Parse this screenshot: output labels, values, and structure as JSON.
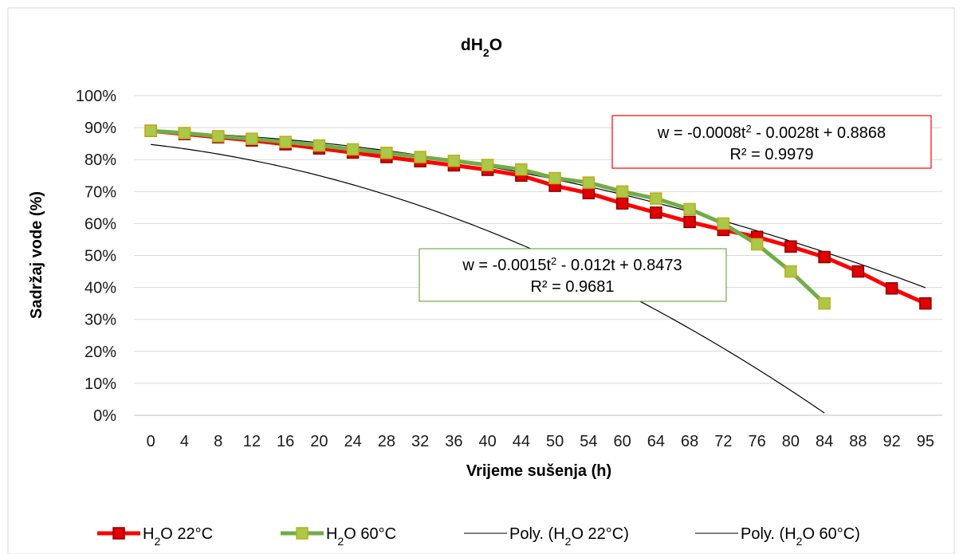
{
  "chart_data": {
    "type": "line",
    "title_main": "dH",
    "title_sub": "2",
    "title_tail": "O",
    "xlabel": "Vrijeme sušenja (h)",
    "ylabel": "Sadržaj vode (%)",
    "ylim": [
      0,
      100
    ],
    "y_ticks": [
      "0%",
      "10%",
      "20%",
      "30%",
      "40%",
      "50%",
      "60%",
      "70%",
      "80%",
      "90%",
      "100%"
    ],
    "categories": [
      "0",
      "4",
      "8",
      "12",
      "16",
      "20",
      "24",
      "28",
      "32",
      "36",
      "40",
      "44",
      "50",
      "54",
      "60",
      "64",
      "68",
      "72",
      "76",
      "80",
      "84",
      "88",
      "92",
      "95"
    ],
    "grid": "horizontal",
    "legend_position": "bottom",
    "series": [
      {
        "name": "H2O 22°C",
        "legend_pre": "H",
        "legend_sub": "2",
        "legend_post": "O 22°C",
        "color": "#ff0000",
        "marker_fill": "#e00000",
        "marker_stroke": "#8b0000",
        "values": [
          89,
          88,
          87,
          86,
          84.8,
          83.5,
          82.2,
          80.8,
          79.5,
          78.2,
          76.8,
          75,
          71.8,
          69.5,
          66.3,
          63.4,
          60.5,
          58,
          55.8,
          52.8,
          49.5,
          45,
          39.7,
          35
        ]
      },
      {
        "name": "H2O 60°C",
        "legend_pre": "H",
        "legend_sub": "2",
        "legend_post": "O 60°C",
        "color": "#70ad47",
        "marker_fill": "#a9c94a",
        "marker_stroke": "#c8a818",
        "values": [
          89,
          88.3,
          87.3,
          86.5,
          85.5,
          84.4,
          83.2,
          82.1,
          80.8,
          79.6,
          78.3,
          76.9,
          74.2,
          72.8,
          70,
          67.8,
          64.5,
          60,
          53.5,
          45,
          35,
          null,
          null,
          null
        ]
      }
    ],
    "trendlines": [
      {
        "name": "Poly. (H2O 22°C)",
        "legend_pre": "Poly. (H",
        "legend_sub": "2",
        "legend_post": "O 22°C)",
        "equation": "w = -0.0008t² - 0.0028t + 0.8868",
        "eq_part1": "w = -0.0008t",
        "eq_sup": "2",
        "eq_part2": " - 0.0028t + 0.8868",
        "r2": "R² = 0.9979",
        "box_color": "#ff0000",
        "coef": [
          -0.0008,
          -0.0028,
          0.8868
        ],
        "x_index_range": [
          0,
          23
        ]
      },
      {
        "name": "Poly. (H2O 60°C)",
        "legend_pre": "Poly. (H",
        "legend_sub": "2",
        "legend_post": "O 60°C)",
        "equation": "w = -0.0015t² - 0.012t + 0.8473",
        "eq_part1": "w = -0.0015t",
        "eq_sup": "2",
        "eq_part2": " - 0.012t + 0.8473",
        "r2": "R² = 0.9681",
        "box_color": "#70ad47",
        "coef": [
          -0.0015,
          -0.012,
          0.8473
        ],
        "x_index_range": [
          0,
          20
        ]
      }
    ]
  }
}
